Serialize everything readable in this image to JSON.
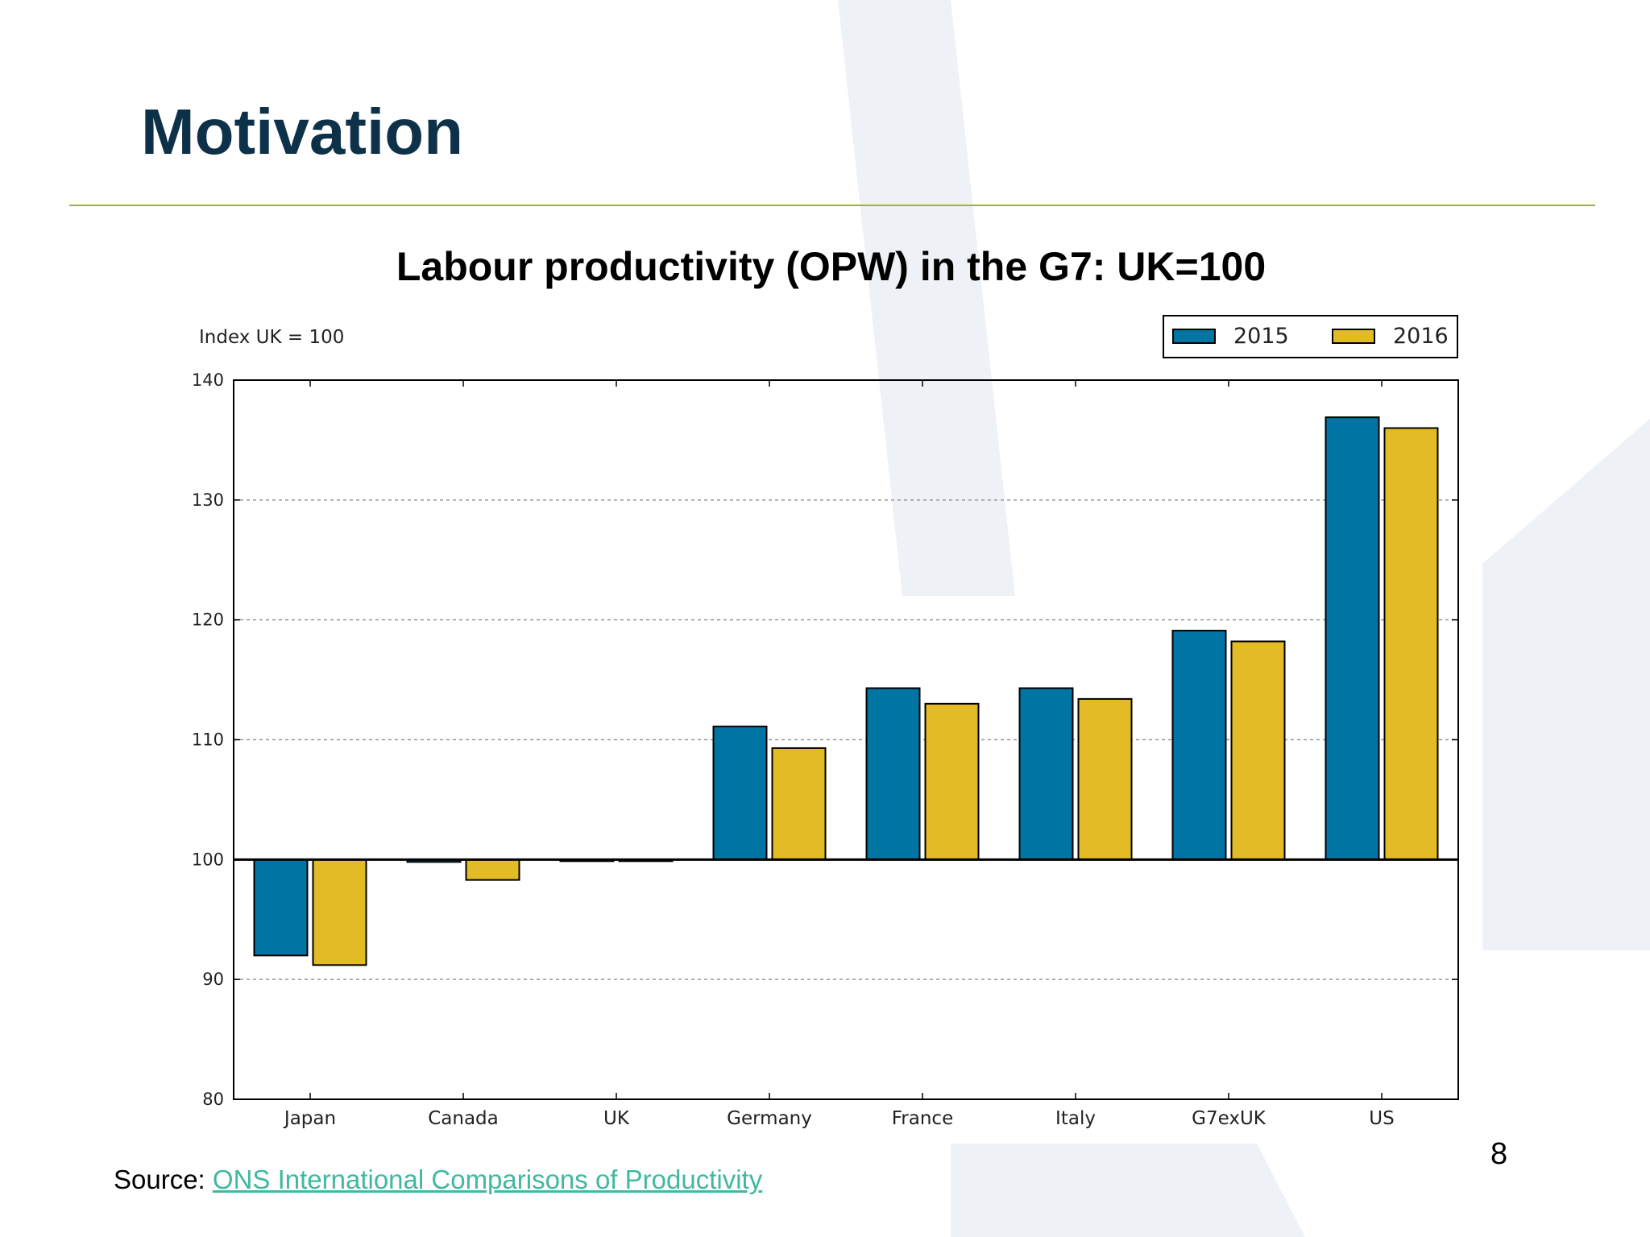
{
  "slide": {
    "title": "Motivation",
    "page_number": "8",
    "source_prefix": "Source: ",
    "source_link": "ONS International Comparisons of Productivity"
  },
  "colors": {
    "title": "#0d3149",
    "rule": "#9bb33a",
    "series_2015": "#0075a3",
    "series_2016": "#e3bb26",
    "link": "#3fb9a0"
  },
  "chart_data": {
    "type": "bar",
    "title": "Labour productivity (OPW) in the G7: UK=100",
    "ylabel": "Index UK = 100",
    "xlabel": "",
    "categories": [
      "Japan",
      "Canada",
      "UK",
      "Germany",
      "France",
      "Italy",
      "G7exUK",
      "US"
    ],
    "series": [
      {
        "name": "2015",
        "values": [
          92.0,
          99.8,
          100.0,
          111.1,
          114.3,
          114.3,
          119.1,
          136.9
        ]
      },
      {
        "name": "2016",
        "values": [
          91.2,
          98.3,
          100.0,
          109.3,
          113.0,
          113.4,
          118.2,
          136.0
        ]
      }
    ],
    "baseline": 100,
    "ylim": [
      80,
      140
    ],
    "yticks": [
      80,
      90,
      100,
      110,
      120,
      130,
      140
    ],
    "grid": true,
    "legend": "top-right"
  }
}
